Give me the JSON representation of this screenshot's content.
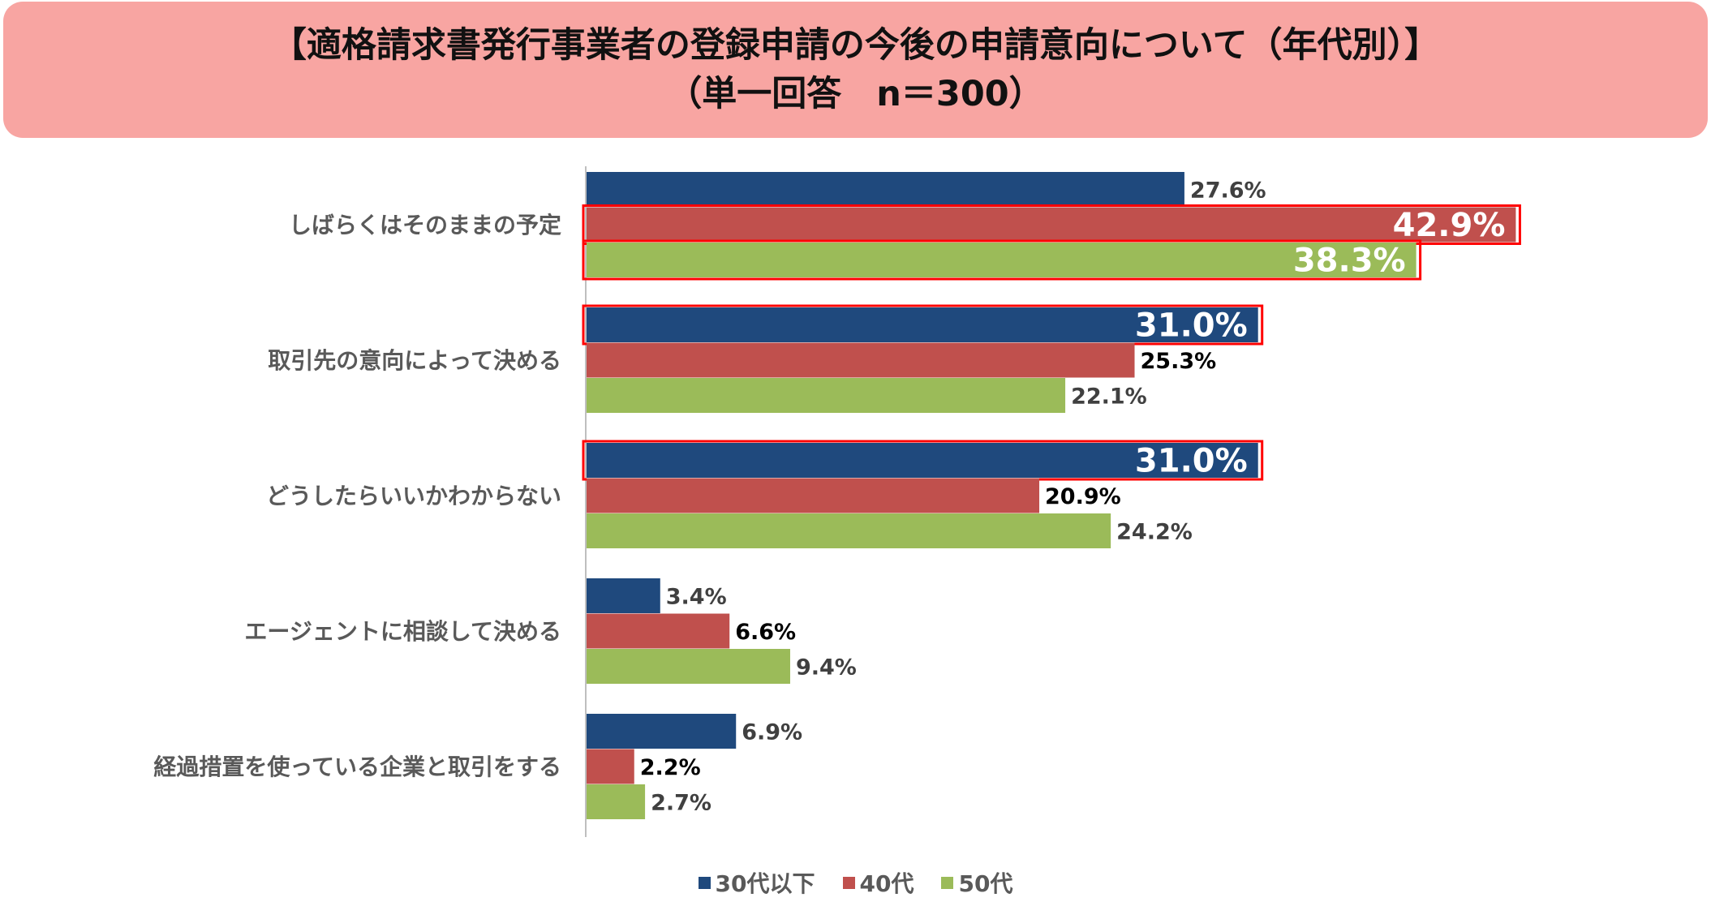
{
  "header": {
    "title_line1": "【適格請求書発行事業者の登録申請の今後の申請意向について（年代別）】",
    "title_line2": "（単一回答　n＝300）"
  },
  "chart_data": {
    "type": "bar",
    "orientation": "horizontal",
    "categories": [
      "しばらくはそのままの予定",
      "取引先の意向によって決める",
      "どうしたらいいかわからない",
      "エージェントに相談して決める",
      "経過措置を使っている企業と取引をする"
    ],
    "series": [
      {
        "name": "30代以下",
        "color": "#1f497d",
        "values": [
          27.6,
          31.0,
          31.0,
          3.4,
          6.9
        ]
      },
      {
        "name": "40代",
        "color": "#c0504d",
        "values": [
          42.9,
          25.3,
          20.9,
          6.6,
          2.2
        ]
      },
      {
        "name": "50代",
        "color": "#9bbb59",
        "values": [
          38.3,
          22.1,
          24.2,
          9.4,
          2.7
        ]
      }
    ],
    "value_labels": [
      [
        "27.6%",
        "31.0%",
        "31.0%",
        "3.4%",
        "6.9%"
      ],
      [
        "42.9%",
        "25.3%",
        "20.9%",
        "6.6%",
        "2.2%"
      ],
      [
        "38.3%",
        "22.1%",
        "24.2%",
        "9.4%",
        "2.7%"
      ]
    ],
    "highlighted": [
      [
        1,
        0
      ],
      [
        2,
        0
      ],
      [
        0,
        1
      ],
      [
        0,
        2
      ]
    ],
    "highlight_color": "#ff0000",
    "xlim": [
      0,
      45
    ],
    "legend_position": "bottom",
    "grid": false
  }
}
